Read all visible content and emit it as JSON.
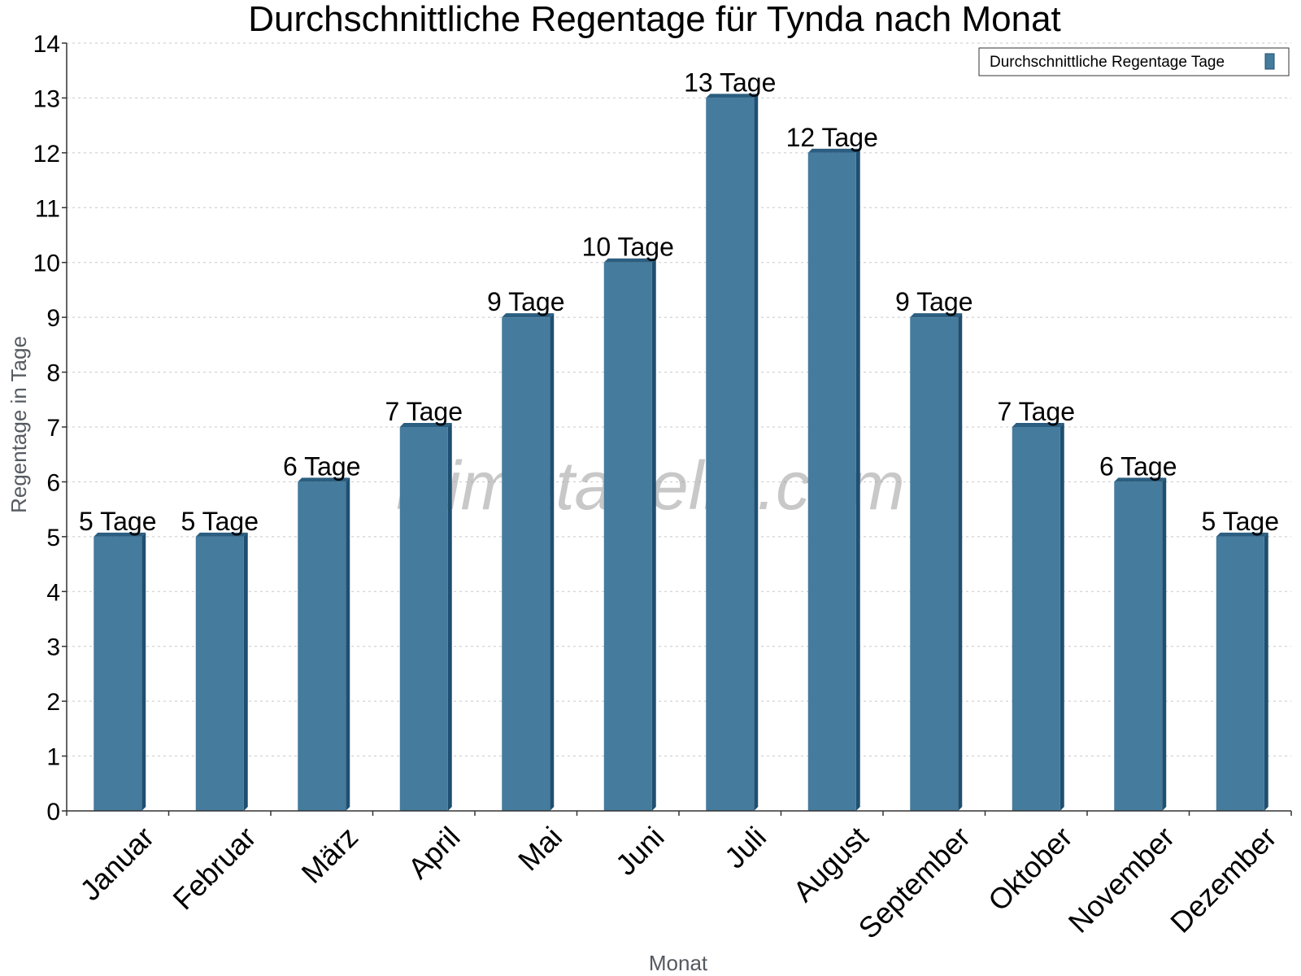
{
  "chart_data": {
    "type": "bar",
    "title": "Durchschnittliche Regentage für Tynda nach Monat",
    "xlabel": "Monat",
    "ylabel": "Regentage in Tage",
    "ylim": [
      0,
      14
    ],
    "yticks": [
      0,
      1,
      2,
      3,
      4,
      5,
      6,
      7,
      8,
      9,
      10,
      11,
      12,
      13,
      14
    ],
    "grid": true,
    "legend_position": "top-right",
    "categories": [
      "Januar",
      "Februar",
      "März",
      "April",
      "Mai",
      "Juni",
      "Juli",
      "August",
      "September",
      "Oktober",
      "November",
      "Dezember"
    ],
    "series": [
      {
        "name": "Durchschnittliche Regentage Tage",
        "color": "#457b9d",
        "values": [
          5,
          5,
          6,
          7,
          9,
          10,
          13,
          12,
          9,
          7,
          6,
          5
        ],
        "labels": [
          "5 Tage",
          "5 Tage",
          "6 Tage",
          "7 Tage",
          "9 Tage",
          "10 Tage",
          "13 Tage",
          "12 Tage",
          "9 Tage",
          "7 Tage",
          "6 Tage",
          "5 Tage"
        ]
      }
    ],
    "watermark": "klimatabelle.com"
  },
  "colors": {
    "bar": "#457b9d",
    "bar_side": "#1f4f70",
    "bar_top": "#2b5e80"
  }
}
